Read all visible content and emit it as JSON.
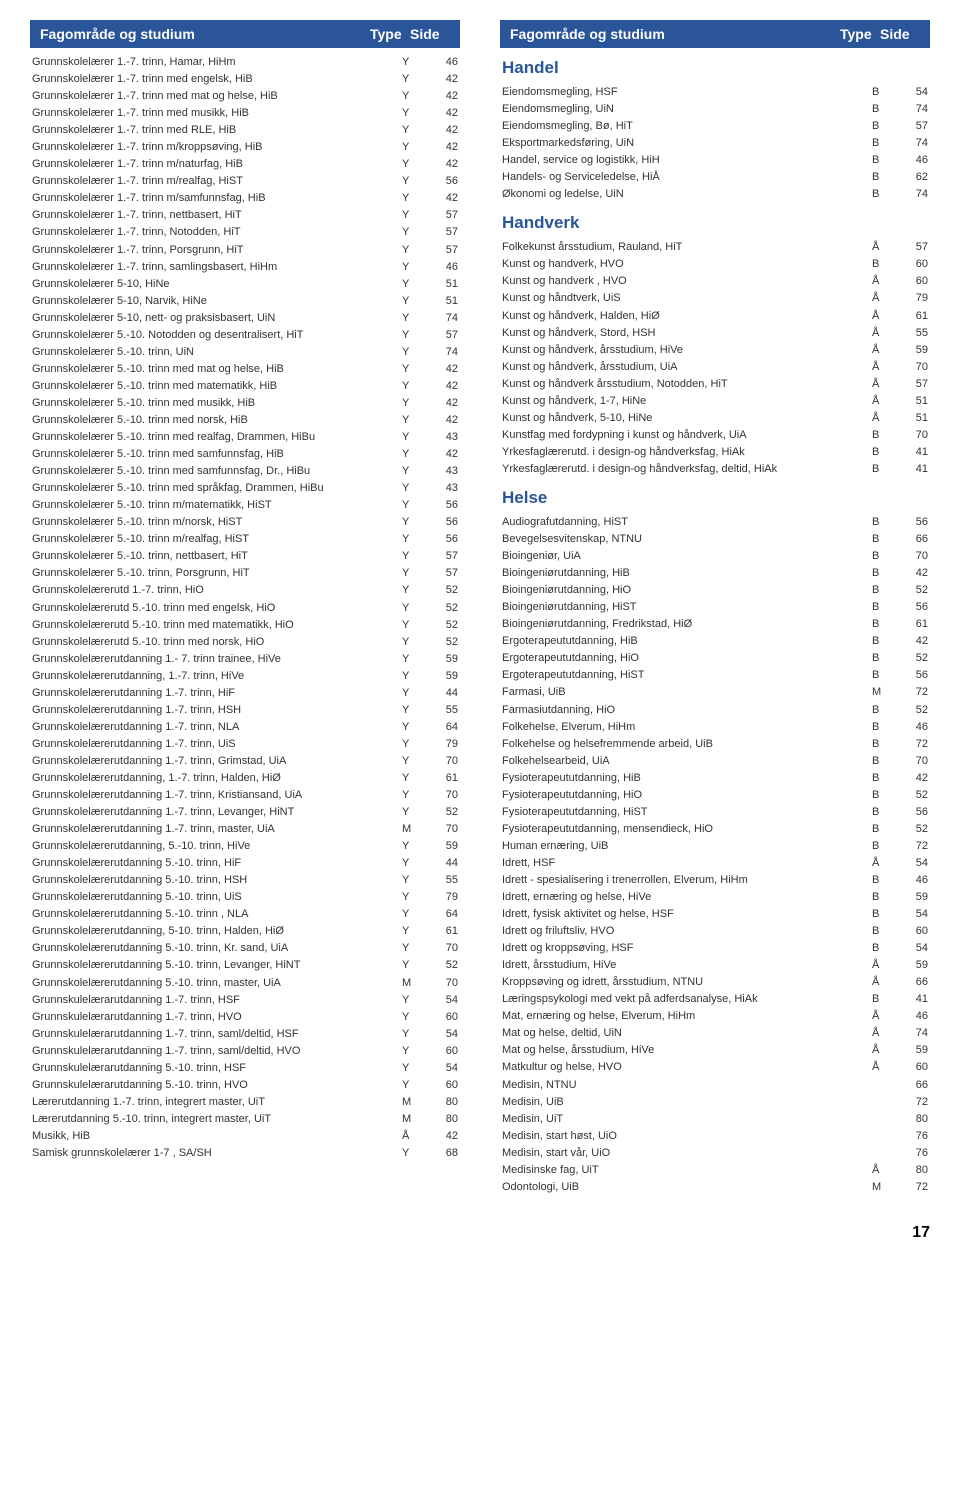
{
  "header": {
    "left": "Fagområde og studium",
    "type": "Type",
    "side": "Side"
  },
  "page_number": "17",
  "left_col": {
    "sections": [
      {
        "title": null,
        "rows": [
          {
            "name": "Grunnskolelærer 1.-7. trinn, Hamar, HiHm",
            "type": "Y",
            "side": "46"
          },
          {
            "name": "Grunnskolelærer 1.-7. trinn med engelsk, HiB",
            "type": "Y",
            "side": "42"
          },
          {
            "name": "Grunnskolelærer 1.-7. trinn med mat og helse, HiB",
            "type": "Y",
            "side": "42"
          },
          {
            "name": "Grunnskolelærer 1.-7. trinn med musikk, HiB",
            "type": "Y",
            "side": "42"
          },
          {
            "name": "Grunnskolelærer 1.-7. trinn med RLE, HiB",
            "type": "Y",
            "side": "42"
          },
          {
            "name": "Grunnskolelærer 1.-7. trinn m/kroppsøving, HiB",
            "type": "Y",
            "side": "42"
          },
          {
            "name": "Grunnskolelærer 1.-7. trinn m/naturfag, HiB",
            "type": "Y",
            "side": "42"
          },
          {
            "name": "Grunnskolelærer 1.-7. trinn m/realfag, HiST",
            "type": "Y",
            "side": "56"
          },
          {
            "name": "Grunnskolelærer 1.-7. trinn m/samfunnsfag, HiB",
            "type": "Y",
            "side": "42"
          },
          {
            "name": "Grunnskolelærer 1.-7. trinn, nettbasert, HiT",
            "type": "Y",
            "side": "57"
          },
          {
            "name": "Grunnskolelærer 1.-7. trinn, Notodden, HiT",
            "type": "Y",
            "side": "57"
          },
          {
            "name": "Grunnskolelærer 1.-7. trinn, Porsgrunn, HiT",
            "type": "Y",
            "side": "57"
          },
          {
            "name": "Grunnskolelærer 1.-7. trinn, samlingsbasert, HiHm",
            "type": "Y",
            "side": "46"
          },
          {
            "name": "Grunnskolelærer 5-10, HiNe",
            "type": "Y",
            "side": "51"
          },
          {
            "name": "Grunnskolelærer 5-10, Narvik, HiNe",
            "type": "Y",
            "side": "51"
          },
          {
            "name": "Grunnskolelærer 5-10, nett- og praksisbasert, UiN",
            "type": "Y",
            "side": "74"
          },
          {
            "name": "Grunnskolelærer 5.-10. Notodden og desentralisert, HiT",
            "type": "Y",
            "side": "57"
          },
          {
            "name": "Grunnskolelærer 5.-10. trinn, UiN",
            "type": "Y",
            "side": "74"
          },
          {
            "name": "Grunnskolelærer 5.-10. trinn med mat og helse, HiB",
            "type": "Y",
            "side": "42"
          },
          {
            "name": "Grunnskolelærer 5.-10. trinn med matematikk, HiB",
            "type": "Y",
            "side": "42"
          },
          {
            "name": "Grunnskolelærer 5.-10. trinn med musikk, HiB",
            "type": "Y",
            "side": "42"
          },
          {
            "name": "Grunnskolelærer 5.-10. trinn med norsk, HiB",
            "type": "Y",
            "side": "42"
          },
          {
            "name": "Grunnskolelærer 5.-10. trinn med realfag, Drammen, HiBu",
            "type": "Y",
            "side": "43"
          },
          {
            "name": "Grunnskolelærer 5.-10. trinn med samfunnsfag, HiB",
            "type": "Y",
            "side": "42"
          },
          {
            "name": "Grunnskolelærer 5.-10. trinn med samfunnsfag, Dr., HiBu",
            "type": "Y",
            "side": "43"
          },
          {
            "name": "Grunnskolelærer 5.-10. trinn med språkfag, Drammen, HiBu",
            "type": "Y",
            "side": "43"
          },
          {
            "name": "Grunnskolelærer 5.-10. trinn m/matematikk, HiST",
            "type": "Y",
            "side": "56"
          },
          {
            "name": "Grunnskolelærer 5.-10. trinn m/norsk, HiST",
            "type": "Y",
            "side": "56"
          },
          {
            "name": "Grunnskolelærer 5.-10. trinn m/realfag, HiST",
            "type": "Y",
            "side": "56"
          },
          {
            "name": "Grunnskolelærer 5.-10. trinn, nettbasert, HiT",
            "type": "Y",
            "side": "57"
          },
          {
            "name": "Grunnskolelærer 5.-10. trinn, Porsgrunn, HiT",
            "type": "Y",
            "side": "57"
          },
          {
            "name": "Grunnskolelærerutd 1.-7. trinn, HiO",
            "type": "Y",
            "side": "52"
          },
          {
            "name": "Grunnskolelærerutd 5.-10. trinn med engelsk, HiO",
            "type": "Y",
            "side": "52"
          },
          {
            "name": "Grunnskolelærerutd 5.-10. trinn med matematikk, HiO",
            "type": "Y",
            "side": "52"
          },
          {
            "name": "Grunnskolelærerutd 5.-10. trinn med norsk, HiO",
            "type": "Y",
            "side": "52"
          },
          {
            "name": "Grunnskolelærerutdanning 1.- 7. trinn trainee, HiVe",
            "type": "Y",
            "side": "59"
          },
          {
            "name": "Grunnskolelærerutdanning, 1.-7. trinn, HiVe",
            "type": "Y",
            "side": "59"
          },
          {
            "name": "Grunnskolelærerutdanning 1.-7. trinn, HiF",
            "type": "Y",
            "side": "44"
          },
          {
            "name": "Grunnskolelærerutdanning 1.-7. trinn, HSH",
            "type": "Y",
            "side": "55"
          },
          {
            "name": "Grunnskolelærerutdanning 1.-7. trinn, NLA",
            "type": "Y",
            "side": "64"
          },
          {
            "name": "Grunnskolelærerutdanning 1.-7. trinn, UiS",
            "type": "Y",
            "side": "79"
          },
          {
            "name": "Grunnskolelærerutdanning 1.-7. trinn, Grimstad, UiA",
            "type": "Y",
            "side": "70"
          },
          {
            "name": "Grunnskolelærerutdanning, 1.-7. trinn, Halden, HiØ",
            "type": "Y",
            "side": "61"
          },
          {
            "name": "Grunnskolelærerutdanning 1.-7. trinn, Kristiansand, UiA",
            "type": "Y",
            "side": "70"
          },
          {
            "name": "Grunnskolelærerutdanning 1.-7. trinn, Levanger, HiNT",
            "type": "Y",
            "side": "52"
          },
          {
            "name": "Grunnskolelærerutdanning 1.-7. trinn, master, UiA",
            "type": "M",
            "side": "70"
          },
          {
            "name": "Grunnskolelærerutdanning, 5.-10. trinn, HiVe",
            "type": "Y",
            "side": "59"
          },
          {
            "name": "Grunnskolelærerutdanning 5.-10. trinn, HiF",
            "type": "Y",
            "side": "44"
          },
          {
            "name": "Grunnskolelærerutdanning 5.-10. trinn, HSH",
            "type": "Y",
            "side": "55"
          },
          {
            "name": "Grunnskolelærerutdanning 5.-10. trinn, UiS",
            "type": "Y",
            "side": "79"
          },
          {
            "name": "Grunnskolelærerutdanning 5.-10. trinn , NLA",
            "type": "Y",
            "side": "64"
          },
          {
            "name": "Grunnskolelærerutdanning, 5-10. trinn, Halden, HiØ",
            "type": "Y",
            "side": "61"
          },
          {
            "name": "Grunnskolelærerutdanning 5.-10. trinn, Kr. sand, UiA",
            "type": "Y",
            "side": "70"
          },
          {
            "name": "Grunnskolelærerutdanning 5.-10. trinn, Levanger, HiNT",
            "type": "Y",
            "side": "52"
          },
          {
            "name": "Grunnskolelærerutdanning 5.-10. trinn, master, UiA",
            "type": "M",
            "side": "70"
          },
          {
            "name": "Grunnskulelærarutdanning 1.-7. trinn, HSF",
            "type": "Y",
            "side": "54"
          },
          {
            "name": "Grunnskulelærarutdanning 1.-7. trinn, HVO",
            "type": "Y",
            "side": "60"
          },
          {
            "name": "Grunnskulelærarutdanning 1.-7. trinn, saml/deltid, HSF",
            "type": "Y",
            "side": "54"
          },
          {
            "name": "Grunnskulelærarutdanning 1.-7. trinn, saml/deltid, HVO",
            "type": "Y",
            "side": "60"
          },
          {
            "name": "Grunnskulelærarutdanning 5.-10. trinn, HSF",
            "type": "Y",
            "side": "54"
          },
          {
            "name": "Grunnskulelærarutdanning 5.-10. trinn, HVO",
            "type": "Y",
            "side": "60"
          },
          {
            "name": "Lærerutdanning 1.-7. trinn, integrert master, UiT",
            "type": "M",
            "side": "80"
          },
          {
            "name": "Lærerutdanning 5.-10. trinn, integrert master, UiT",
            "type": "M",
            "side": "80"
          },
          {
            "name": "Musikk, HiB",
            "type": "Å",
            "side": "42"
          },
          {
            "name": "Samisk grunnskolelærer 1-7 , SA/SH",
            "type": "Y",
            "side": "68"
          }
        ]
      }
    ]
  },
  "right_col": {
    "sections": [
      {
        "title": "Handel",
        "rows": [
          {
            "name": "Eiendomsmegling, HSF",
            "type": "B",
            "side": "54"
          },
          {
            "name": "Eiendomsmegling, UiN",
            "type": "B",
            "side": "74"
          },
          {
            "name": "Eiendomsmegling, Bø, HiT",
            "type": "B",
            "side": "57"
          },
          {
            "name": "Eksportmarkedsføring, UiN",
            "type": "B",
            "side": "74"
          },
          {
            "name": "Handel, service og logistikk, HiH",
            "type": "B",
            "side": "46"
          },
          {
            "name": "Handels- og Serviceledelse, HiÅ",
            "type": "B",
            "side": "62"
          },
          {
            "name": "Økonomi og ledelse, UiN",
            "type": "B",
            "side": "74"
          }
        ]
      },
      {
        "title": "Handverk",
        "rows": [
          {
            "name": "Folkekunst årsstudium, Rauland, HiT",
            "type": "Å",
            "side": "57"
          },
          {
            "name": "Kunst og handverk, HVO",
            "type": "B",
            "side": "60"
          },
          {
            "name": "Kunst og handverk , HVO",
            "type": "Å",
            "side": "60"
          },
          {
            "name": "Kunst og håndtverk, UiS",
            "type": "Å",
            "side": "79"
          },
          {
            "name": "Kunst og håndverk, Halden, HiØ",
            "type": "Å",
            "side": "61"
          },
          {
            "name": "Kunst og håndverk, Stord, HSH",
            "type": "Å",
            "side": "55"
          },
          {
            "name": "Kunst og håndverk, årsstudium, HiVe",
            "type": "Å",
            "side": "59"
          },
          {
            "name": "Kunst og håndverk, årsstudium, UiA",
            "type": "Å",
            "side": "70"
          },
          {
            "name": "Kunst og håndverk årsstudium, Notodden, HiT",
            "type": "Å",
            "side": "57"
          },
          {
            "name": "Kunst og håndverk, 1-7, HiNe",
            "type": "Å",
            "side": "51"
          },
          {
            "name": "Kunst og håndverk, 5-10, HiNe",
            "type": "Å",
            "side": "51"
          },
          {
            "name": "Kunstfag med fordypning i kunst og håndverk, UiA",
            "type": "B",
            "side": "70"
          },
          {
            "name": "Yrkesfaglærerutd. i design-og håndverksfag, HiAk",
            "type": "B",
            "side": "41"
          },
          {
            "name": "Yrkesfaglærerutd. i design-og håndverksfag, deltid, HiAk",
            "type": "B",
            "side": "41"
          }
        ]
      },
      {
        "title": "Helse",
        "rows": [
          {
            "name": "Audiografutdanning, HiST",
            "type": "B",
            "side": "56"
          },
          {
            "name": "Bevegelsesvitenskap, NTNU",
            "type": "B",
            "side": "66"
          },
          {
            "name": "Bioingeniør, UiA",
            "type": "B",
            "side": "70"
          },
          {
            "name": "Bioingeniørutdanning, HiB",
            "type": "B",
            "side": "42"
          },
          {
            "name": "Bioingeniørutdanning, HiO",
            "type": "B",
            "side": "52"
          },
          {
            "name": "Bioingeniørutdanning, HiST",
            "type": "B",
            "side": "56"
          },
          {
            "name": "Bioingeniørutdanning, Fredrikstad, HiØ",
            "type": "B",
            "side": "61"
          },
          {
            "name": "Ergoterapeututdanning, HiB",
            "type": "B",
            "side": "42"
          },
          {
            "name": "Ergoterapeututdanning, HiO",
            "type": "B",
            "side": "52"
          },
          {
            "name": "Ergoterapeututdanning, HiST",
            "type": "B",
            "side": "56"
          },
          {
            "name": "Farmasi, UiB",
            "type": "M",
            "side": "72"
          },
          {
            "name": "Farmasiutdanning, HiO",
            "type": "B",
            "side": "52"
          },
          {
            "name": "Folkehelse, Elverum, HiHm",
            "type": "B",
            "side": "46"
          },
          {
            "name": "Folkehelse og helsefremmende arbeid, UiB",
            "type": "B",
            "side": "72"
          },
          {
            "name": "Folkehelsearbeid, UiA",
            "type": "B",
            "side": "70"
          },
          {
            "name": "Fysioterapeututdanning, HiB",
            "type": "B",
            "side": "42"
          },
          {
            "name": "Fysioterapeututdanning, HiO",
            "type": "B",
            "side": "52"
          },
          {
            "name": "Fysioterapeututdanning, HiST",
            "type": "B",
            "side": "56"
          },
          {
            "name": "Fysioterapeututdanning, mensendieck, HiO",
            "type": "B",
            "side": "52"
          },
          {
            "name": "Human ernæring, UiB",
            "type": "B",
            "side": "72"
          },
          {
            "name": "Idrett, HSF",
            "type": "Å",
            "side": "54"
          },
          {
            "name": "Idrett - spesialisering i trenerrollen, Elverum, HiHm",
            "type": "B",
            "side": "46"
          },
          {
            "name": "Idrett, ernæring og helse, HiVe",
            "type": "B",
            "side": "59"
          },
          {
            "name": "Idrett, fysisk aktivitet og helse, HSF",
            "type": "B",
            "side": "54"
          },
          {
            "name": "Idrett og friluftsliv, HVO",
            "type": "B",
            "side": "60"
          },
          {
            "name": "Idrett og kroppsøving, HSF",
            "type": "B",
            "side": "54"
          },
          {
            "name": "Idrett, årsstudium, HiVe",
            "type": "Å",
            "side": "59"
          },
          {
            "name": "Kroppsøving og idrett, årsstudium, NTNU",
            "type": "Å",
            "side": "66"
          },
          {
            "name": "Læringspsykologi med vekt på adferdsanalyse, HiAk",
            "type": "B",
            "side": "41"
          },
          {
            "name": "Mat, ernæring og helse, Elverum, HiHm",
            "type": "Å",
            "side": "46"
          },
          {
            "name": "Mat og helse, deltid, UiN",
            "type": "Å",
            "side": "74"
          },
          {
            "name": "Mat og helse, årsstudium, HiVe",
            "type": "Å",
            "side": "59"
          },
          {
            "name": "Matkultur og helse, HVO",
            "type": "Å",
            "side": "60"
          },
          {
            "name": "Medisin, NTNU",
            "type": "",
            "side": "66"
          },
          {
            "name": "Medisin, UiB",
            "type": "",
            "side": "72"
          },
          {
            "name": "Medisin, UiT",
            "type": "",
            "side": "80"
          },
          {
            "name": "Medisin, start høst, UiO",
            "type": "",
            "side": "76"
          },
          {
            "name": "Medisin, start vår, UiO",
            "type": "",
            "side": "76"
          },
          {
            "name": "Medisinske fag, UiT",
            "type": "Å",
            "side": "80"
          },
          {
            "name": "Odontologi, UiB",
            "type": "M",
            "side": "72"
          }
        ]
      }
    ]
  }
}
